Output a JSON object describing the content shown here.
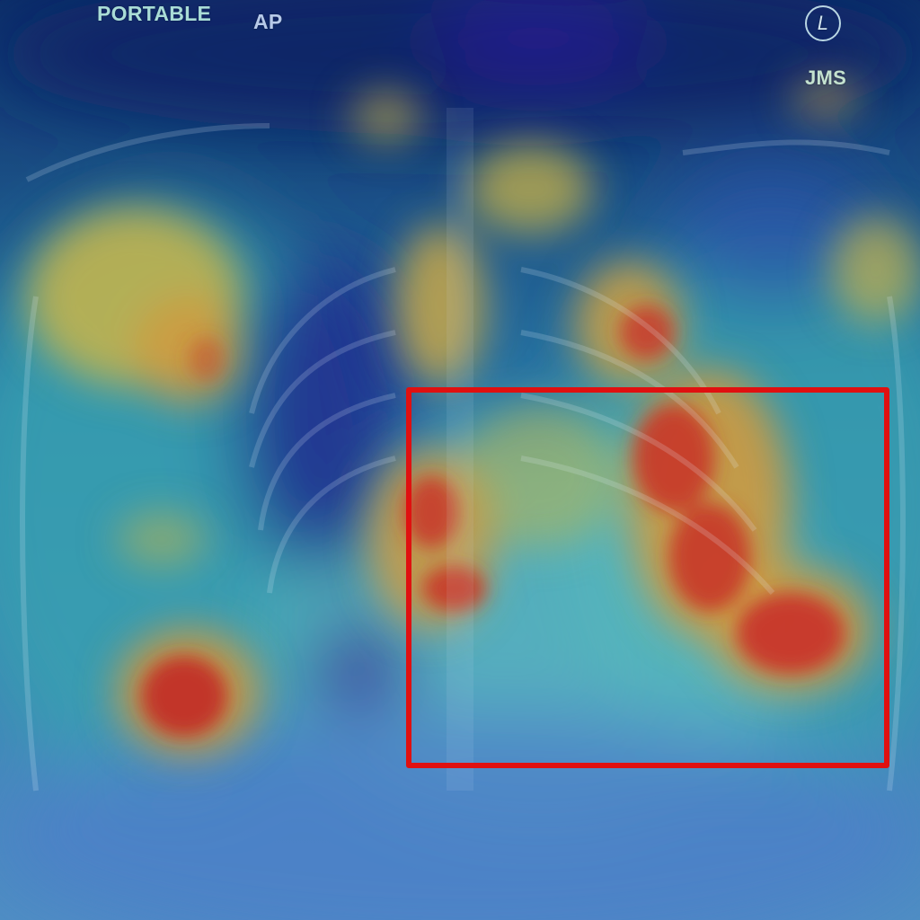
{
  "image": {
    "kind": "chest radiograph with attention heatmap overlay",
    "overlay_colormap": [
      "#1a1f8c",
      "#1f5fb4",
      "#3fb3b0",
      "#c9c455",
      "#e0a040",
      "#d23a2a"
    ],
    "roi_color": "#e01010"
  },
  "markers": {
    "portable": "PORTABLE",
    "projection": "AP",
    "side": "L",
    "initials": "JMS"
  }
}
